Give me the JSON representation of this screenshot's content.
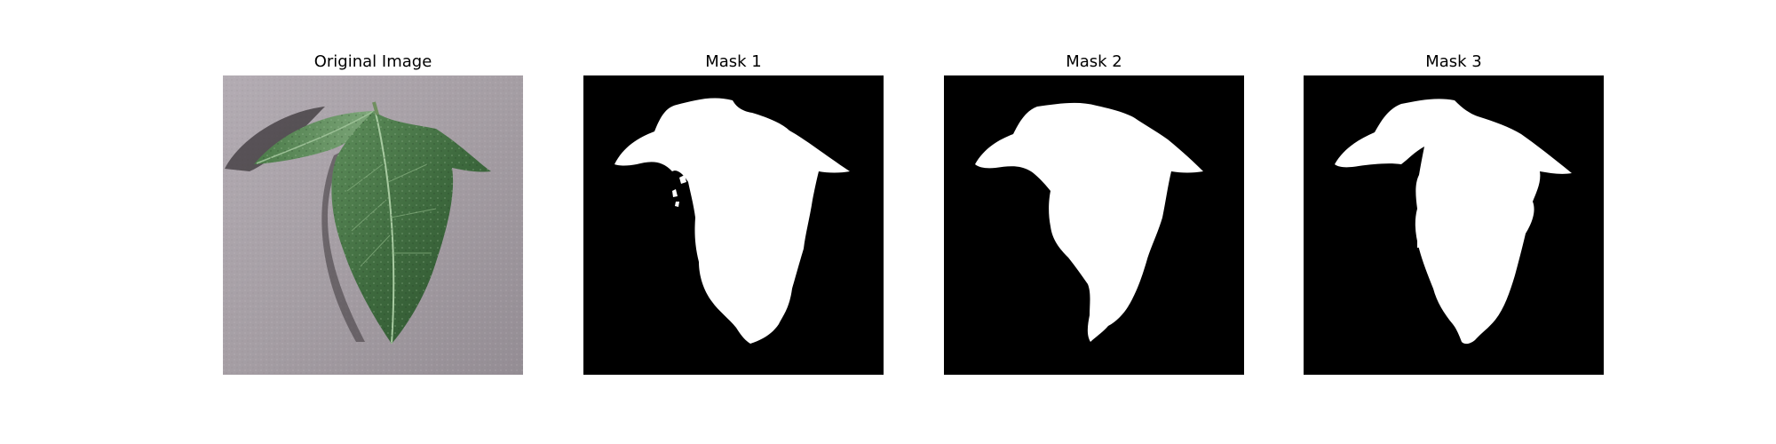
{
  "figure": {
    "panels": [
      {
        "title": "Original Image",
        "kind": "photo"
      },
      {
        "title": "Mask 1",
        "kind": "mask"
      },
      {
        "title": "Mask 2",
        "kind": "mask"
      },
      {
        "title": "Mask 3",
        "kind": "mask"
      }
    ]
  },
  "colors": {
    "page_background": "#ffffff",
    "mask_background": "#000000",
    "mask_foreground": "#ffffff",
    "surface_gray": "#a59ea4",
    "leaf_dark_green": "#2f5530",
    "leaf_mid_green": "#4f7f4d",
    "leaf_light_green": "#8fb58a",
    "shadow": "#3a3438"
  }
}
